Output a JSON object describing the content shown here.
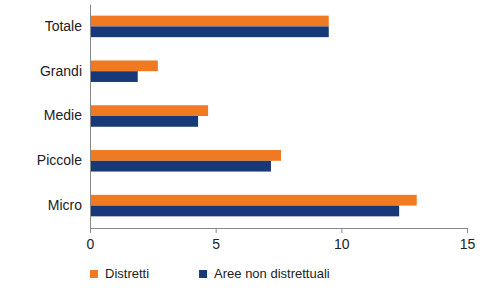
{
  "chart_data": {
    "type": "bar",
    "orientation": "horizontal",
    "categories": [
      "Totale",
      "Grandi",
      "Medie",
      "Piccole",
      "Micro"
    ],
    "series": [
      {
        "name": "Distretti",
        "color": "#f07a22",
        "values": [
          9.5,
          2.7,
          4.7,
          7.6,
          13.0
        ]
      },
      {
        "name": "Aree non distrettuali",
        "color": "#17397a",
        "values": [
          9.5,
          1.9,
          4.3,
          7.2,
          12.3
        ]
      }
    ],
    "xlim": [
      0,
      15
    ],
    "xticks": [
      0,
      5,
      10,
      15
    ],
    "grid": false,
    "legend": "bottom"
  }
}
